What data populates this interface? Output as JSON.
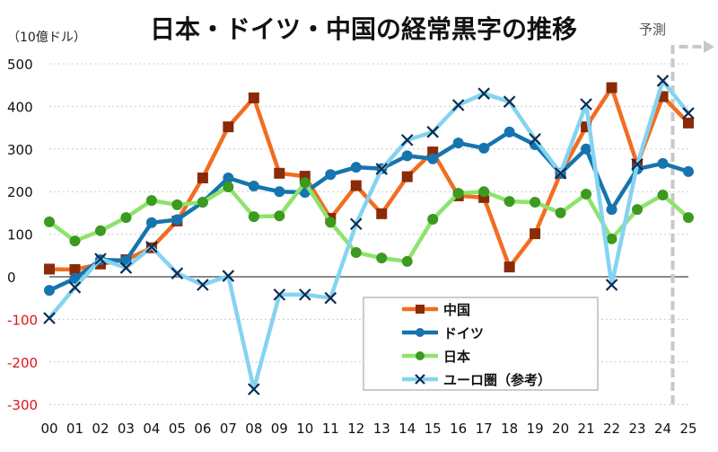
{
  "chart_data": {
    "type": "line",
    "title": "日本・ドイツ・中国の経常黒字の推移",
    "ylabel": "（10億ドル）",
    "forecast_label": "予測",
    "forecast_from": "24",
    "ylim": [
      -300,
      500
    ],
    "yticks": [
      500,
      400,
      300,
      200,
      100,
      0,
      -100,
      -200,
      -300
    ],
    "negative_tick_color": "#e0141e",
    "grid": true,
    "legend_position": "bottom-center (inside plot)",
    "categories": [
      "00",
      "01",
      "02",
      "03",
      "04",
      "05",
      "06",
      "07",
      "08",
      "09",
      "10",
      "11",
      "12",
      "13",
      "14",
      "15",
      "16",
      "17",
      "18",
      "19",
      "20",
      "21",
      "22",
      "23",
      "24",
      "25"
    ],
    "series": [
      {
        "name": "中国",
        "line_color": "#f26d21",
        "marker_color": "#8b2a06",
        "marker": "square",
        "values": [
          18,
          17,
          30,
          40,
          68,
          131,
          232,
          352,
          420,
          243,
          236,
          137,
          214,
          148,
          235,
          293,
          190,
          186,
          23,
          101,
          243,
          352,
          444,
          264,
          423,
          361
        ]
      },
      {
        "name": "ドイツ",
        "line_color": "#1674ae",
        "marker_color": "#1674ae",
        "marker": "circle",
        "values": [
          -32,
          -4,
          40,
          38,
          127,
          134,
          175,
          232,
          213,
          200,
          198,
          240,
          257,
          254,
          284,
          277,
          314,
          302,
          340,
          310,
          243,
          300,
          158,
          253,
          266,
          247
        ]
      },
      {
        "name": "日本",
        "line_color": "#8ee36c",
        "marker_color": "#3b9a1f",
        "marker": "circle",
        "values": [
          129,
          84,
          108,
          139,
          179,
          169,
          175,
          211,
          141,
          143,
          221,
          128,
          57,
          44,
          36,
          135,
          196,
          200,
          177,
          175,
          150,
          194,
          89,
          158,
          192,
          139
        ]
      },
      {
        "name": "ユーロ圏（参考）",
        "line_color": "#84d3f1",
        "marker_color": "#0d2c52",
        "marker": "x",
        "values": [
          -97,
          -25,
          42,
          21,
          70,
          8,
          -19,
          2,
          -264,
          -42,
          -42,
          -50,
          124,
          253,
          321,
          340,
          403,
          430,
          411,
          323,
          243,
          405,
          -19,
          264,
          460,
          384
        ]
      }
    ]
  }
}
